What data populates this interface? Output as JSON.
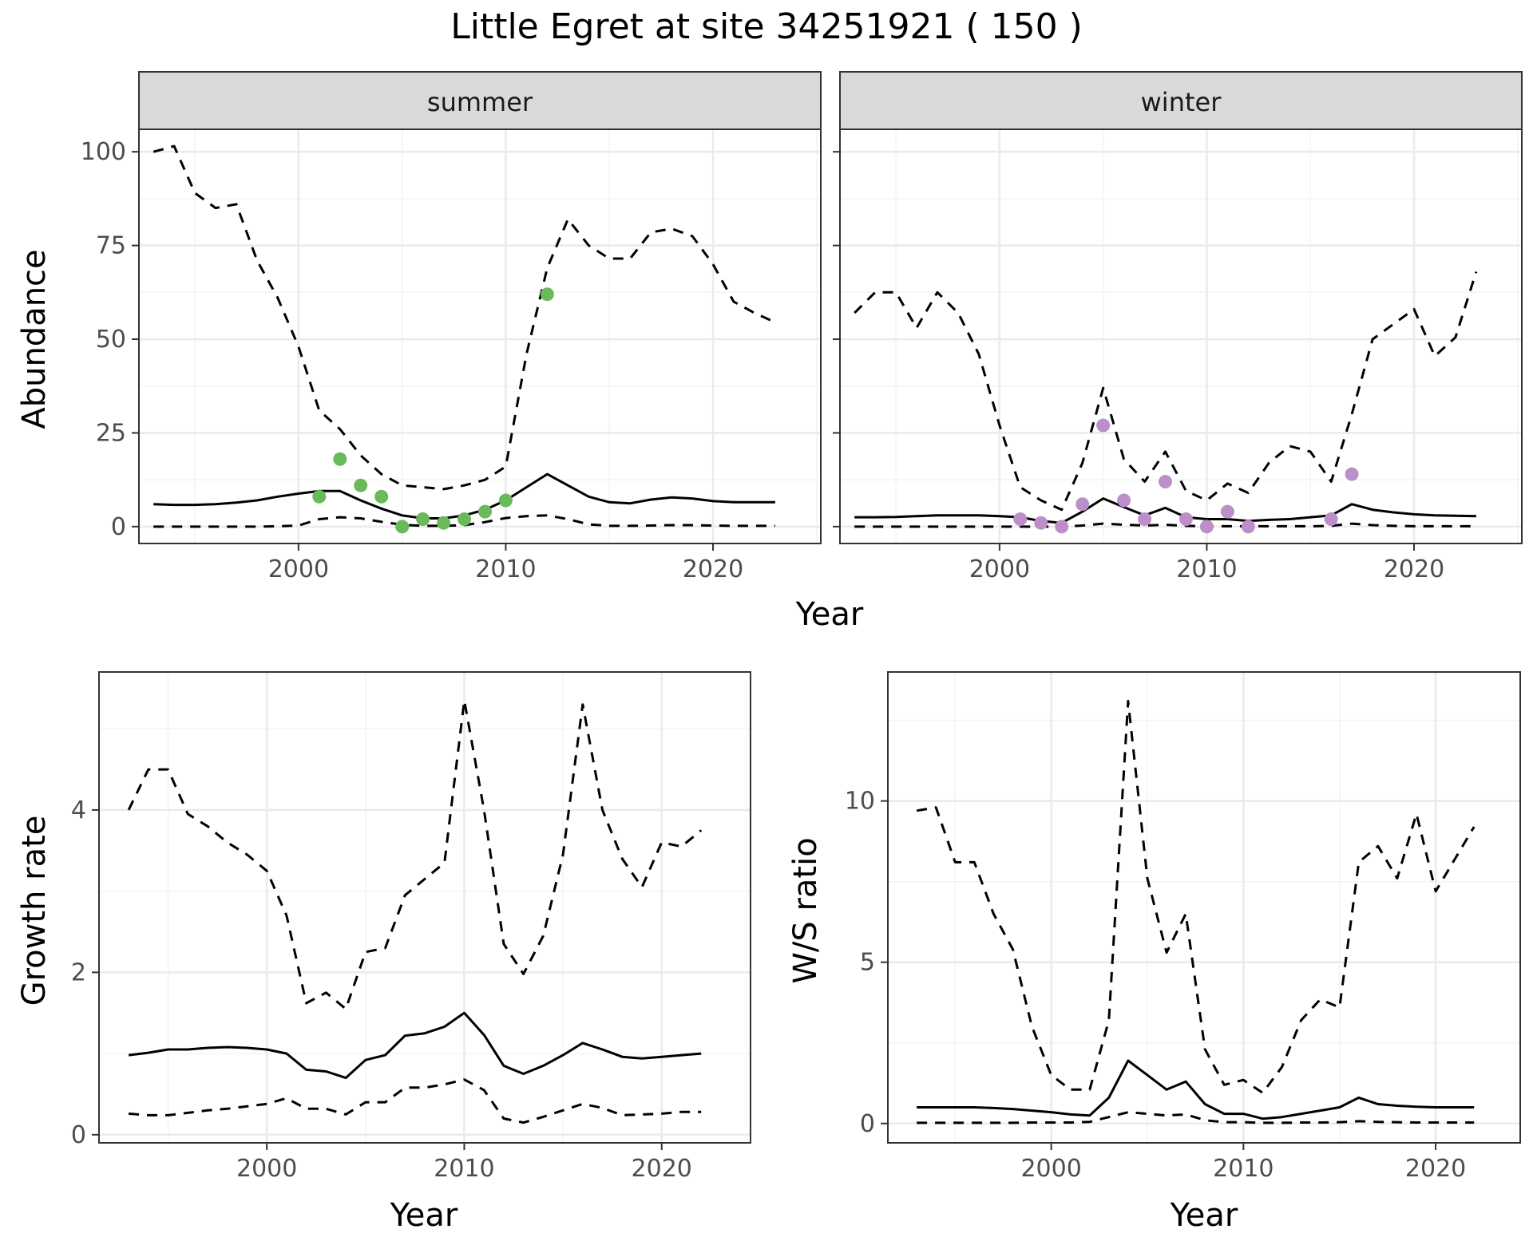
{
  "title": "Little Egret at site 34251921 ( 150 )",
  "chart_data": [
    {
      "type": "line",
      "panel": "summer",
      "strip_label": "summer",
      "xlabel": "Year",
      "ylabel": "Abundance",
      "xlim": [
        1992.3,
        2025.2
      ],
      "ylim": [
        -4.5,
        106
      ],
      "xticks": [
        2000,
        2010,
        2020
      ],
      "yticks": [
        0,
        25,
        50,
        75,
        100
      ],
      "grid": true,
      "series": [
        {
          "style": "solid",
          "x": [
            1993,
            1994,
            1995,
            1996,
            1997,
            1998,
            1999,
            2000,
            2001,
            2002,
            2003,
            2004,
            2005,
            2006,
            2007,
            2008,
            2009,
            2010,
            2011,
            2012,
            2013,
            2014,
            2015,
            2016,
            2017,
            2018,
            2019,
            2020,
            2021,
            2022,
            2023
          ],
          "values": [
            6,
            5.8,
            5.8,
            6,
            6.4,
            7,
            8,
            8.8,
            9.5,
            9.5,
            7,
            4.8,
            3,
            2.2,
            2.2,
            3,
            4.5,
            7,
            10.5,
            14,
            11,
            8,
            6.5,
            6.2,
            7.2,
            7.8,
            7.5,
            6.8,
            6.5,
            6.5,
            6.5
          ]
        },
        {
          "style": "dashed",
          "x": [
            1993,
            1994,
            1995,
            1996,
            1997,
            1998,
            1999,
            2000,
            2001,
            2002,
            2003,
            2004,
            2005,
            2006,
            2007,
            2008,
            2009,
            2010,
            2011,
            2012,
            2013,
            2014,
            2015,
            2016,
            2017,
            2018,
            2019,
            2020,
            2021,
            2022,
            2023
          ],
          "values": [
            100,
            101.5,
            89,
            85,
            86,
            71,
            61,
            48,
            31,
            26,
            19,
            14,
            11,
            10.5,
            10,
            11,
            12.5,
            16,
            46,
            69,
            82,
            75,
            71.5,
            71.5,
            78.5,
            79.5,
            77.5,
            70,
            60,
            57,
            54.5
          ]
        },
        {
          "style": "dashed",
          "x": [
            1993,
            1994,
            1995,
            1996,
            1997,
            1998,
            1999,
            2000,
            2001,
            2002,
            2003,
            2004,
            2005,
            2006,
            2007,
            2008,
            2009,
            2010,
            2011,
            2012,
            2013,
            2014,
            2015,
            2016,
            2017,
            2018,
            2019,
            2020,
            2021,
            2022,
            2023
          ],
          "values": [
            0,
            0,
            0,
            0,
            0,
            0,
            0.1,
            0.3,
            2,
            2.5,
            2.2,
            1.3,
            0.5,
            0.2,
            0.2,
            0.4,
            1.2,
            2.3,
            2.8,
            3,
            2,
            0.6,
            0.2,
            0.2,
            0.3,
            0.4,
            0.4,
            0.3,
            0.2,
            0.2,
            0.2
          ]
        }
      ],
      "points": {
        "color": "#6ab95b",
        "x": [
          2001,
          2002,
          2003,
          2004,
          2005,
          2006,
          2007,
          2008,
          2009,
          2010,
          2012
        ],
        "values": [
          8,
          18,
          11,
          8,
          0,
          2,
          1,
          2,
          4,
          7,
          62
        ]
      }
    },
    {
      "type": "line",
      "panel": "winter",
      "strip_label": "winter",
      "xlabel": "Year",
      "ylabel": "",
      "xlim": [
        1992.3,
        2025.2
      ],
      "ylim": [
        -4.5,
        106
      ],
      "xticks": [
        2000,
        2010,
        2020
      ],
      "yticks": [
        0,
        25,
        50,
        75,
        100
      ],
      "grid": true,
      "series": [
        {
          "style": "solid",
          "x": [
            1993,
            1994,
            1995,
            1996,
            1997,
            1998,
            1999,
            2000,
            2001,
            2002,
            2003,
            2004,
            2005,
            2006,
            2007,
            2008,
            2009,
            2010,
            2011,
            2012,
            2013,
            2014,
            2015,
            2016,
            2017,
            2018,
            2019,
            2020,
            2021,
            2022,
            2023
          ],
          "values": [
            2.5,
            2.5,
            2.6,
            2.8,
            3,
            3,
            3,
            2.8,
            2.5,
            1.5,
            1,
            4,
            7.5,
            5.2,
            3,
            5,
            2.5,
            2,
            2,
            1.5,
            1.8,
            2,
            2.5,
            3,
            6,
            4.5,
            3.8,
            3.3,
            3,
            2.9,
            2.8
          ]
        },
        {
          "style": "dashed",
          "x": [
            1993,
            1994,
            1995,
            1996,
            1997,
            1998,
            1999,
            2000,
            2001,
            2002,
            2003,
            2004,
            2005,
            2006,
            2007,
            2008,
            2009,
            2010,
            2011,
            2012,
            2013,
            2014,
            2015,
            2016,
            2017,
            2018,
            2019,
            2020,
            2021,
            2022,
            2023
          ],
          "values": [
            57,
            62.5,
            62.5,
            53,
            62.5,
            57,
            46,
            27,
            10.5,
            7,
            4.5,
            17,
            37,
            18,
            12,
            20,
            9.5,
            7,
            11.5,
            9,
            17,
            21.5,
            20,
            12,
            30,
            50,
            54,
            58,
            45.5,
            50.5,
            68
          ]
        },
        {
          "style": "dashed",
          "x": [
            1993,
            1994,
            1995,
            1996,
            1997,
            1998,
            1999,
            2000,
            2001,
            2002,
            2003,
            2004,
            2005,
            2006,
            2007,
            2008,
            2009,
            2010,
            2011,
            2012,
            2013,
            2014,
            2015,
            2016,
            2017,
            2018,
            2019,
            2020,
            2021,
            2022,
            2023
          ],
          "values": [
            0,
            0,
            0,
            0,
            0,
            0,
            0,
            0,
            0,
            0,
            0,
            0.3,
            0.8,
            0.5,
            0.3,
            0.5,
            0.2,
            0.1,
            0.1,
            0.1,
            0.1,
            0.1,
            0.1,
            0.2,
            0.8,
            0.4,
            0.2,
            0.1,
            0.1,
            0.1,
            0.1
          ]
        }
      ],
      "points": {
        "color": "#bc8fca",
        "x": [
          2001,
          2002,
          2003,
          2004,
          2005,
          2006,
          2007,
          2008,
          2009,
          2010,
          2011,
          2012,
          2016,
          2017
        ],
        "values": [
          2,
          1,
          0,
          6,
          27,
          7,
          2,
          12,
          2,
          0,
          4,
          0,
          2,
          14
        ]
      }
    },
    {
      "type": "line",
      "panel": "growth",
      "xlabel": "Year",
      "ylabel": "Growth rate",
      "xlim": [
        1991.5,
        2024.5
      ],
      "ylim": [
        -0.1,
        5.7
      ],
      "xticks": [
        2000,
        2010,
        2020
      ],
      "yticks": [
        0,
        2,
        4
      ],
      "grid": true,
      "series": [
        {
          "style": "solid",
          "x": [
            1993,
            1994,
            1995,
            1996,
            1997,
            1998,
            1999,
            2000,
            2001,
            2002,
            2003,
            2004,
            2005,
            2006,
            2007,
            2008,
            2009,
            2010,
            2011,
            2012,
            2013,
            2014,
            2015,
            2016,
            2017,
            2018,
            2019,
            2020,
            2021,
            2022
          ],
          "values": [
            0.98,
            1.01,
            1.05,
            1.05,
            1.07,
            1.08,
            1.07,
            1.05,
            1.0,
            0.8,
            0.78,
            0.7,
            0.92,
            0.98,
            1.22,
            1.25,
            1.33,
            1.5,
            1.23,
            0.85,
            0.75,
            0.85,
            0.98,
            1.13,
            1.05,
            0.96,
            0.94,
            0.96,
            0.98,
            1.0
          ]
        },
        {
          "style": "dashed",
          "x": [
            1993,
            1994,
            1995,
            1996,
            1997,
            1998,
            1999,
            2000,
            2001,
            2002,
            2003,
            2004,
            2005,
            2006,
            2007,
            2008,
            2009,
            2010,
            2011,
            2012,
            2013,
            2014,
            2015,
            2016,
            2017,
            2018,
            2019,
            2020,
            2021,
            2022
          ],
          "values": [
            4.0,
            4.5,
            4.5,
            3.95,
            3.8,
            3.6,
            3.45,
            3.25,
            2.7,
            1.62,
            1.75,
            1.55,
            2.25,
            2.3,
            2.95,
            3.15,
            3.35,
            5.35,
            4.0,
            2.35,
            1.98,
            2.45,
            3.45,
            5.3,
            4.0,
            3.4,
            3.05,
            3.6,
            3.55,
            3.75
          ]
        },
        {
          "style": "dashed",
          "x": [
            1993,
            1994,
            1995,
            1996,
            1997,
            1998,
            1999,
            2000,
            2001,
            2002,
            2003,
            2004,
            2005,
            2006,
            2007,
            2008,
            2009,
            2010,
            2011,
            2012,
            2013,
            2014,
            2015,
            2016,
            2017,
            2018,
            2019,
            2020,
            2021,
            2022
          ],
          "values": [
            0.26,
            0.24,
            0.24,
            0.27,
            0.3,
            0.32,
            0.35,
            0.38,
            0.45,
            0.32,
            0.32,
            0.25,
            0.4,
            0.4,
            0.58,
            0.58,
            0.62,
            0.68,
            0.55,
            0.2,
            0.15,
            0.22,
            0.3,
            0.38,
            0.33,
            0.24,
            0.25,
            0.26,
            0.28,
            0.28
          ]
        }
      ]
    },
    {
      "type": "line",
      "panel": "ws_ratio",
      "xlabel": "Year",
      "ylabel": "W/S ratio",
      "xlim": [
        1991.5,
        2024.4
      ],
      "ylim": [
        -0.6,
        14.0
      ],
      "xticks": [
        2000,
        2010,
        2020
      ],
      "yticks": [
        0,
        5,
        10
      ],
      "grid": true,
      "series": [
        {
          "style": "solid",
          "x": [
            1993,
            1994,
            1995,
            1996,
            1997,
            1998,
            1999,
            2000,
            2001,
            2002,
            2003,
            2004,
            2005,
            2006,
            2007,
            2008,
            2009,
            2010,
            2011,
            2012,
            2013,
            2014,
            2015,
            2016,
            2017,
            2018,
            2019,
            2020,
            2021,
            2022
          ],
          "values": [
            0.5,
            0.5,
            0.5,
            0.5,
            0.48,
            0.45,
            0.4,
            0.35,
            0.28,
            0.25,
            0.8,
            1.95,
            1.5,
            1.05,
            1.3,
            0.6,
            0.3,
            0.3,
            0.15,
            0.2,
            0.3,
            0.4,
            0.5,
            0.8,
            0.6,
            0.55,
            0.52,
            0.5,
            0.5,
            0.5
          ]
        },
        {
          "style": "dashed",
          "x": [
            1993,
            1994,
            1995,
            1996,
            1997,
            1998,
            1999,
            2000,
            2001,
            2002,
            2003,
            2004,
            2005,
            2006,
            2007,
            2008,
            2009,
            2010,
            2011,
            2012,
            2013,
            2014,
            2015,
            2016,
            2017,
            2018,
            2019,
            2020,
            2021,
            2022
          ],
          "values": [
            9.7,
            9.8,
            8.1,
            8.1,
            6.5,
            5.4,
            3.0,
            1.5,
            1.05,
            1.05,
            3.2,
            13.1,
            7.6,
            5.3,
            6.5,
            2.3,
            1.2,
            1.35,
            0.95,
            1.75,
            3.2,
            3.85,
            3.6,
            8.1,
            8.6,
            7.6,
            9.6,
            7.2,
            8.2,
            9.2
          ]
        },
        {
          "style": "dashed",
          "x": [
            1993,
            1994,
            1995,
            1996,
            1997,
            1998,
            1999,
            2000,
            2001,
            2002,
            2003,
            2004,
            2005,
            2006,
            2007,
            2008,
            2009,
            2010,
            2011,
            2012,
            2013,
            2014,
            2015,
            2016,
            2017,
            2018,
            2019,
            2020,
            2021,
            2022
          ],
          "values": [
            0.02,
            0.02,
            0.02,
            0.02,
            0.02,
            0.02,
            0.03,
            0.03,
            0.03,
            0.05,
            0.2,
            0.35,
            0.3,
            0.25,
            0.28,
            0.1,
            0.04,
            0.04,
            0.02,
            0.02,
            0.03,
            0.03,
            0.04,
            0.07,
            0.05,
            0.04,
            0.03,
            0.03,
            0.03,
            0.03
          ]
        }
      ]
    }
  ]
}
